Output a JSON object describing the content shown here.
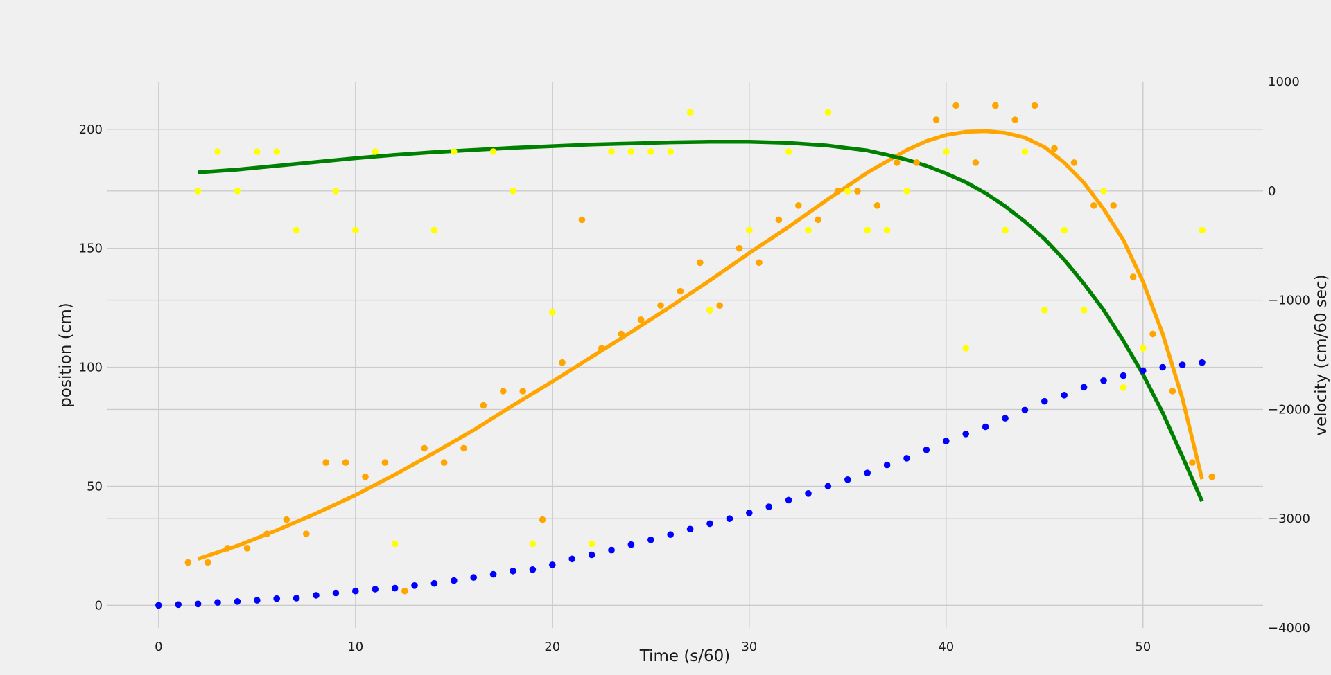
{
  "chart_data": {
    "type": "scatter",
    "xlabel": "Time (s/60)",
    "ylabel": "position (cm)",
    "ylabel_right": "velocity (cm/60 sec)",
    "xlim": [
      -2.6,
      56.1
    ],
    "ylim": [
      -9.5,
      220
    ],
    "ylim_right": [
      -4000,
      1000
    ],
    "xticks": [
      0,
      10,
      20,
      30,
      40,
      50
    ],
    "yticks": [
      0,
      50,
      100,
      150,
      200
    ],
    "yticks_right": [
      -4000,
      -3000,
      -2000,
      -1000,
      0,
      1000
    ],
    "grid": true,
    "colors": {
      "position": "#0000ff",
      "speed_points": "#ffa500",
      "speed_fit": "#ffa500",
      "velocity_points": "#ffff00",
      "velocity_fit": "#008000"
    },
    "series": [
      {
        "axis": "left",
        "kind": "scatter",
        "color": "#0000ff",
        "x": [
          0,
          1,
          2,
          3,
          4,
          5,
          6,
          7,
          8,
          9,
          10,
          11,
          12,
          13,
          14,
          15,
          16,
          17,
          18,
          19,
          20,
          21,
          22,
          23,
          24,
          25,
          26,
          27,
          28,
          29,
          30,
          31,
          32,
          33,
          34,
          35,
          36,
          37,
          38,
          39,
          40,
          41,
          42,
          43,
          44,
          45,
          46,
          47,
          48,
          49,
          50,
          51,
          52,
          53
        ],
        "y": [
          0,
          0.3,
          0.6,
          1.2,
          1.6,
          2.1,
          2.8,
          3,
          4.2,
          5.2,
          6,
          6.8,
          7.2,
          8.3,
          9.2,
          10.4,
          11.7,
          13,
          14.4,
          15,
          17,
          19.5,
          21.2,
          23.2,
          25.5,
          27.5,
          29.7,
          32,
          34.3,
          36.4,
          38.8,
          41.4,
          44.2,
          47,
          50,
          52.8,
          55.6,
          59,
          61.8,
          65.3,
          69,
          72,
          75,
          78.6,
          82,
          85.7,
          88.3,
          91.6,
          94.4,
          96.5,
          98.6,
          100,
          101,
          102
        ]
      },
      {
        "axis": "left",
        "kind": "scatter",
        "color": "#ffa500",
        "x": [
          1.5,
          2.5,
          3.5,
          4.5,
          5.5,
          6.5,
          7.5,
          8.5,
          9.5,
          10.5,
          11.5,
          12.5,
          13.5,
          14.5,
          15.5,
          16.5,
          17.5,
          18.5,
          19.5,
          20.5,
          21.5,
          22.5,
          23.5,
          24.5,
          25.5,
          26.5,
          27.5,
          28,
          28.5,
          29.5,
          30.5,
          31.5,
          32.5,
          33.5,
          34.5,
          35.5,
          36.5,
          37.5,
          38.5,
          39.5,
          40.5,
          41.5,
          42.5,
          43.5,
          44.5,
          45.5,
          46.5,
          47.5,
          48.5,
          49.5,
          50.5,
          51.5,
          52.5,
          53.5
        ],
        "y": [
          18,
          18,
          24,
          24,
          30,
          36,
          30,
          60,
          60,
          54,
          60,
          6,
          66,
          60,
          66,
          84,
          90,
          90,
          36,
          102,
          162,
          108,
          114,
          120,
          126,
          132,
          144,
          124,
          126,
          150,
          144,
          162,
          168,
          162,
          174,
          174,
          168,
          186,
          186,
          204,
          210,
          186,
          210,
          204,
          210,
          192,
          186,
          168,
          168,
          138,
          114,
          90,
          60,
          54
        ]
      },
      {
        "axis": "left",
        "kind": "line",
        "color": "#ffa500",
        "x": [
          2,
          4,
          6,
          8,
          10,
          12,
          14,
          16,
          18,
          20,
          22,
          24,
          26,
          28,
          30,
          32,
          34,
          36,
          38,
          39,
          40,
          41,
          42,
          43,
          44,
          45,
          46,
          47,
          48,
          49,
          50,
          51,
          52,
          53
        ],
        "y": [
          19.5,
          25,
          31.5,
          38.6,
          46.3,
          54.9,
          64.1,
          73.6,
          84,
          94,
          104.4,
          114.8,
          125.5,
          136.5,
          148,
          159,
          170.6,
          181.8,
          191.3,
          195,
          197.6,
          198.9,
          199.2,
          198.5,
          196.5,
          192.5,
          186,
          177.5,
          166.5,
          153.5,
          136,
          114,
          87,
          53
        ]
      },
      {
        "axis": "right",
        "kind": "scatter",
        "color": "#ffff00",
        "x": [
          2,
          3,
          4,
          5,
          6,
          7,
          9,
          10,
          11,
          12,
          14,
          15,
          17,
          18,
          19,
          20,
          22,
          23,
          24,
          25,
          26,
          27,
          28,
          30,
          32,
          33,
          34,
          35,
          36,
          37,
          38,
          40,
          41,
          43,
          44,
          45,
          46,
          47,
          48,
          49,
          50,
          53
        ],
        "y": [
          0,
          360,
          0,
          360,
          360,
          -360,
          0,
          -360,
          360,
          -3230,
          -360,
          360,
          360,
          0,
          -3230,
          -1110,
          -3230,
          360,
          360,
          360,
          360,
          720,
          -1090,
          -360,
          360,
          -360,
          720,
          0,
          -360,
          -360,
          0,
          360,
          -1440,
          -360,
          360,
          -1090,
          -360,
          -1090,
          0,
          -1800,
          -1440,
          -360
        ]
      },
      {
        "axis": "right",
        "kind": "line",
        "color": "#008000",
        "x": [
          2,
          4,
          6,
          8,
          10,
          12,
          14,
          16,
          18,
          20,
          22,
          24,
          26,
          28,
          30,
          32,
          34,
          36,
          37,
          38,
          39,
          40,
          41,
          42,
          43,
          44,
          45,
          46,
          47,
          48,
          49,
          50,
          51,
          52,
          53
        ],
        "y": [
          170,
          195,
          230,
          265,
          300,
          330,
          355,
          375,
          395,
          410,
          425,
          435,
          445,
          450,
          450,
          440,
          415,
          370,
          330,
          285,
          230,
          160,
          80,
          -20,
          -140,
          -280,
          -440,
          -630,
          -850,
          -1090,
          -1370,
          -1680,
          -2030,
          -2430,
          -2840
        ]
      }
    ]
  }
}
